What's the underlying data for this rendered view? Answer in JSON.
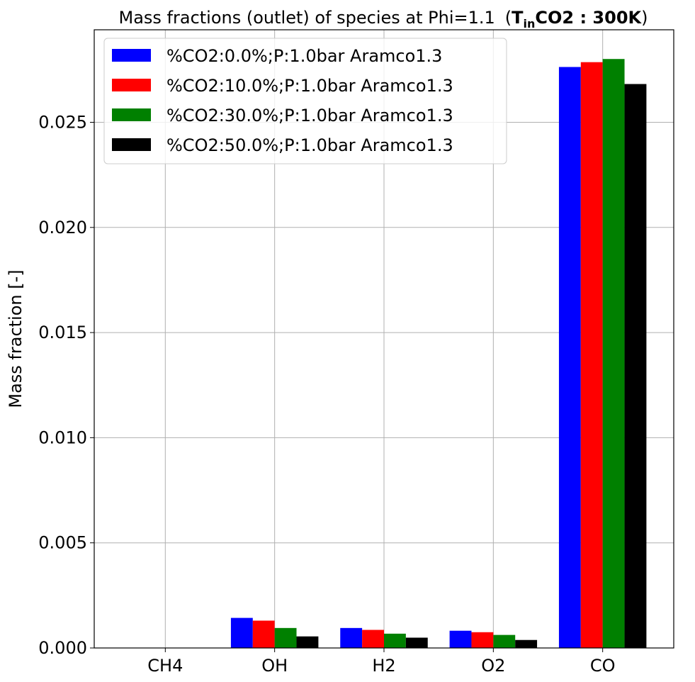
{
  "chart_data": {
    "type": "bar",
    "title": "Mass fractions (outlet) of species at Phi=1.1",
    "title_annotation": {
      "open": "(",
      "main": "T",
      "sub": "in",
      "rest": "CO2 : 300K",
      "close": ")"
    },
    "xlabel": "",
    "ylabel": "Mass fraction [-]",
    "categories": [
      "CH4",
      "OH",
      "H2",
      "O2",
      "CO"
    ],
    "ylim": [
      0,
      0.0294
    ],
    "yticks": [
      "0.000",
      "0.005",
      "0.010",
      "0.015",
      "0.020",
      "0.025"
    ],
    "ytick_values": [
      0,
      0.005,
      0.01,
      0.015,
      0.02,
      0.025
    ],
    "grid": true,
    "legend_position": "upper-left",
    "series": [
      {
        "name": "%CO2:0.0%;P:1.0bar Aramco1.3",
        "color": "#0000ff",
        "values": [
          0.0,
          0.00143,
          0.00095,
          0.00082,
          0.02763
        ]
      },
      {
        "name": "%CO2:10.0%;P:1.0bar Aramco1.3",
        "color": "#ff0000",
        "values": [
          0.0,
          0.0013,
          0.00086,
          0.00075,
          0.02786
        ]
      },
      {
        "name": "%CO2:30.0%;P:1.0bar Aramco1.3",
        "color": "#008000",
        "values": [
          0.0,
          0.00095,
          0.00068,
          0.00062,
          0.02801
        ]
      },
      {
        "name": "%CO2:50.0%;P:1.0bar Aramco1.3",
        "color": "#000000",
        "values": [
          0.0,
          0.00055,
          0.00049,
          0.00038,
          0.02682
        ]
      }
    ]
  }
}
